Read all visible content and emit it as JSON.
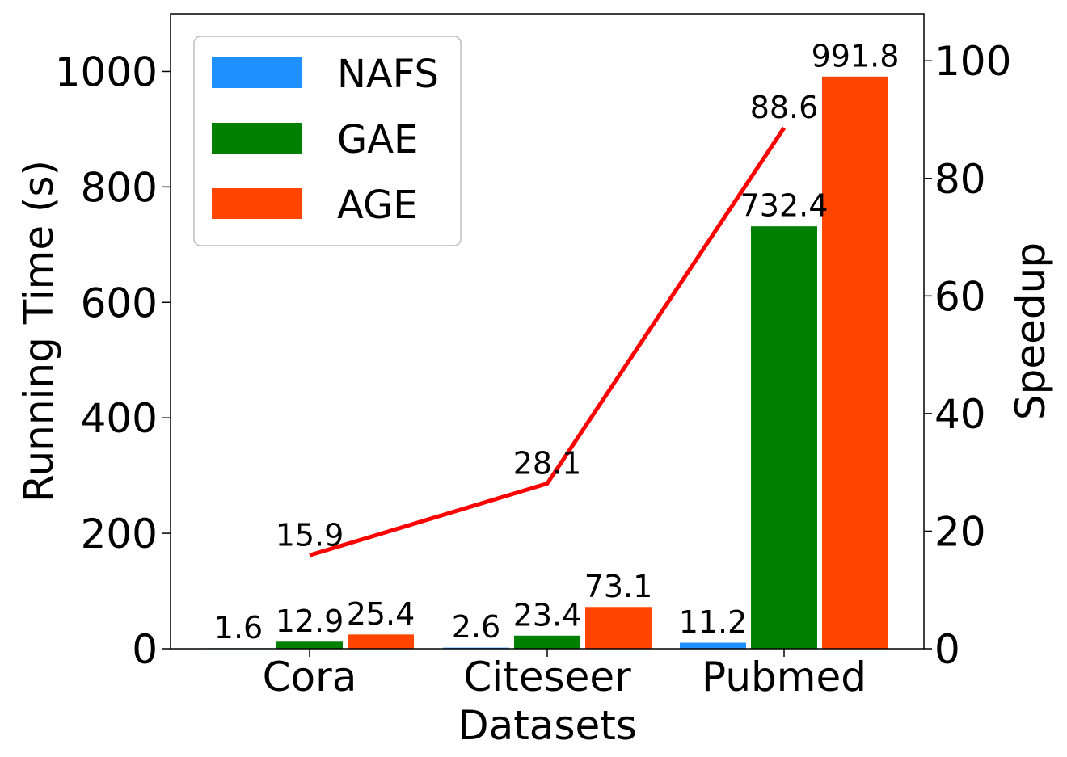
{
  "chart_data": {
    "type": "bar",
    "categories": [
      "Cora",
      "Citeseer",
      "Pubmed"
    ],
    "xlabel": "Datasets",
    "ylabel": "Running Time (s)",
    "y2label": "Speedup",
    "ylim": [
      0,
      1100
    ],
    "y2lim": [
      0,
      108
    ],
    "yticks": [
      0,
      200,
      400,
      600,
      800,
      1000
    ],
    "y2ticks": [
      0,
      20,
      40,
      60,
      80,
      100
    ],
    "series": [
      {
        "name": "NAFS",
        "color": "#1e90ff",
        "values": [
          1.6,
          2.6,
          11.2
        ],
        "labels": [
          "1.6",
          "2.6",
          "11.2"
        ]
      },
      {
        "name": "GAE",
        "color": "#008000",
        "values": [
          12.9,
          23.4,
          732.4
        ],
        "labels": [
          "12.9",
          "23.4",
          "732.4"
        ]
      },
      {
        "name": "AGE",
        "color": "#ff4500",
        "values": [
          25.4,
          73.1,
          991.8
        ],
        "labels": [
          "25.4",
          "73.1",
          "991.8"
        ]
      }
    ],
    "line_series": {
      "name": "Speedup",
      "axis": "right",
      "color": "#ff0000",
      "values": [
        15.9,
        28.1,
        88.6
      ],
      "labels": [
        "15.9",
        "28.1",
        "88.6"
      ]
    },
    "legend": "top-left"
  }
}
